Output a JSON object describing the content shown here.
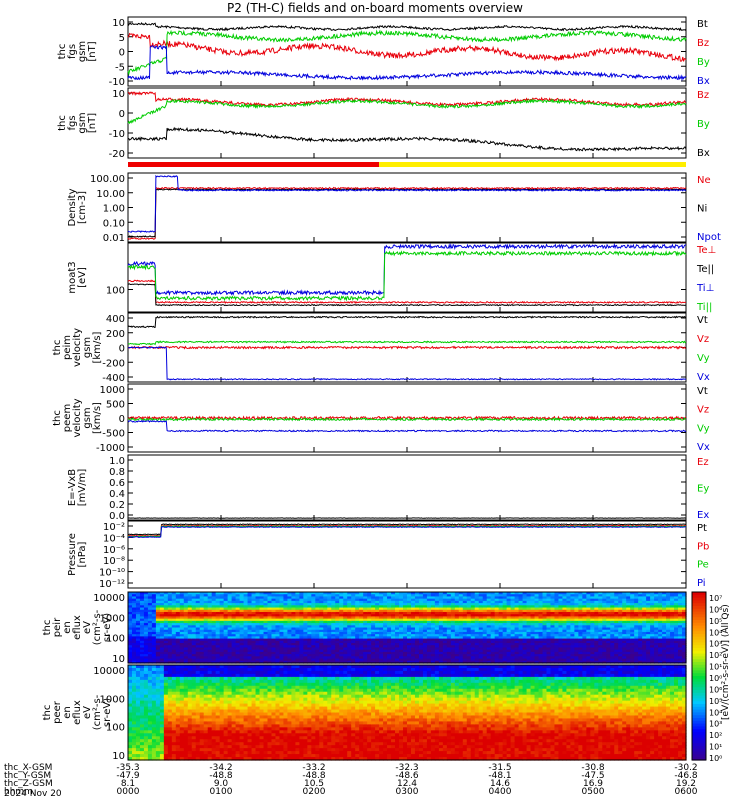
{
  "title": "P2 (TH-C) fields and on-board moments overview",
  "panels": [
    {
      "id": "fgs_gsm",
      "ylabel": [
        "thc",
        "fgs",
        "gsm",
        "[nT]"
      ],
      "ylim": [
        -10,
        15
      ],
      "ticks": [
        10,
        5,
        0,
        -5,
        -10
      ],
      "legend": [
        {
          "label": "Bt",
          "color": "#000000"
        },
        {
          "label": "Bz",
          "color": "#e8000b"
        },
        {
          "label": "By",
          "color": "#00cc00"
        },
        {
          "label": "Bx",
          "color": "#0000dd"
        }
      ]
    },
    {
      "id": "fgs_gse",
      "ylabel": [
        "thc",
        "fgs",
        "gsm",
        "[nT]"
      ],
      "ylim": [
        -25,
        15
      ],
      "ticks": [
        10,
        0,
        -10,
        -20
      ],
      "legend": [
        {
          "label": "Bz",
          "color": "#e8000b"
        },
        {
          "label": "By",
          "color": "#00cc00"
        },
        {
          "label": "Bx",
          "color": "#000000"
        }
      ]
    },
    {
      "id": "density",
      "ylabel": [
        "Density",
        "[cm-3]"
      ],
      "log": true,
      "ticks": [
        "100.00",
        "10.00",
        "1.00",
        "0.10",
        "0.01"
      ],
      "legend": [
        {
          "label": "Ne",
          "color": "#e8000b"
        },
        {
          "label": "Ni",
          "color": "#000000"
        },
        {
          "label": "Npot",
          "color": "#0000dd"
        }
      ]
    },
    {
      "id": "temp",
      "ylabel": [
        "moat3",
        "[eV]"
      ],
      "log": true,
      "ticks": [
        "100"
      ],
      "legend": [
        {
          "label": "Te⊥",
          "color": "#e8000b"
        },
        {
          "label": "Te||",
          "color": "#000000"
        },
        {
          "label": "Ti⊥",
          "color": "#0000dd"
        },
        {
          "label": "Ti||",
          "color": "#00cc00"
        }
      ]
    },
    {
      "id": "peim_v",
      "ylabel": [
        "thc",
        "peim",
        "velocity",
        "gsm",
        "[km/s]"
      ],
      "ylim": [
        -400,
        400
      ],
      "ticks": [
        400,
        200,
        0,
        -200,
        -400
      ],
      "legend": [
        {
          "label": "Vt",
          "color": "#000000"
        },
        {
          "label": "Vz",
          "color": "#e8000b"
        },
        {
          "label": "Vy",
          "color": "#00cc00"
        },
        {
          "label": "Vx",
          "color": "#0000dd"
        }
      ]
    },
    {
      "id": "peem_v",
      "ylabel": [
        "thc",
        "peem",
        "velocity",
        "gsm",
        "[km/s]"
      ],
      "ylim": [
        -1000,
        1000
      ],
      "ticks": [
        1000,
        500,
        0,
        -500,
        -1000
      ],
      "legend": [
        {
          "label": "Vt",
          "color": "#000000"
        },
        {
          "label": "Vz",
          "color": "#e8000b"
        },
        {
          "label": "Vy",
          "color": "#00cc00"
        },
        {
          "label": "Vx",
          "color": "#0000dd"
        }
      ]
    },
    {
      "id": "efield",
      "ylabel": [
        "E=-VxB",
        "[mV/m]"
      ],
      "ylim": [
        0,
        1
      ],
      "ticks": [
        "1.0",
        "0.8",
        "0.6",
        "0.4",
        "0.2",
        "0.0"
      ],
      "legend": [
        {
          "label": "Ez",
          "color": "#e8000b"
        },
        {
          "label": "Ey",
          "color": "#00cc00"
        },
        {
          "label": "Ex",
          "color": "#0000dd"
        }
      ]
    },
    {
      "id": "pressure",
      "ylabel": [
        "Pressure",
        "[nPa]"
      ],
      "log": true,
      "ticks": [
        "10⁻²",
        "10⁻⁴",
        "10⁻⁶",
        "10⁻⁸",
        "10⁻¹⁰",
        "10⁻¹²"
      ],
      "legend": [
        {
          "label": "Pt",
          "color": "#000000"
        },
        {
          "label": "Pb",
          "color": "#e8000b"
        },
        {
          "label": "Pe",
          "color": "#00cc00"
        },
        {
          "label": "Pi",
          "color": "#0000dd"
        }
      ]
    },
    {
      "id": "peir",
      "ylabel": [
        "thc",
        "peir",
        "en",
        "eflux",
        "eV",
        "(cm²-s-",
        "sr-eV)"
      ],
      "ticks": [
        "10000",
        "1000",
        "100",
        "10"
      ]
    },
    {
      "id": "peer",
      "ylabel": [
        "thc",
        "peer",
        "en",
        "eflux",
        "eV",
        "(cm²-s-",
        "sr-eV)"
      ],
      "ticks": [
        "10000",
        "1000",
        "100",
        "10"
      ]
    }
  ],
  "colorbar": {
    "label": "[eV/(cm²-s-sr-eV)] (All Qs)",
    "ticks": [
      "10⁷",
      "10⁶",
      "10⁵",
      "10⁴",
      "10³",
      "10²",
      "10¹",
      "10⁰",
      "10⁶",
      "10⁵",
      "10⁴",
      "10³",
      "10²",
      "10¹",
      "10⁰"
    ]
  },
  "mode_bar": {
    "segments": [
      {
        "color": "#ee0000",
        "from": 0,
        "to": 0.45
      },
      {
        "color": "#ffee00",
        "from": 0.45,
        "to": 1
      }
    ]
  },
  "x_axis": {
    "rows": [
      {
        "label": "thc_X-GSM",
        "values": [
          "-35.3",
          "-34.2",
          "-33.2",
          "-32.3",
          "-31.5",
          "-30.8",
          "-30.2"
        ]
      },
      {
        "label": "thc_Y-GSM",
        "values": [
          "-47.9",
          "-48.8",
          "-48.8",
          "-48.6",
          "-48.1",
          "-47.5",
          "-46.8"
        ]
      },
      {
        "label": "thc_Z-GSM",
        "values": [
          "8.1",
          "9.0",
          "10.5",
          "12.4",
          "14.6",
          "16.9",
          "19.2"
        ]
      },
      {
        "label": "hhmm",
        "values": [
          "0000",
          "0100",
          "0200",
          "0300",
          "0400",
          "0500",
          "0600"
        ]
      }
    ],
    "date": "2024 Nov 20"
  },
  "chart_data": {
    "type": "line",
    "title": "P2 (TH-C) fields and on-board moments overview",
    "x": [
      "0000",
      "0100",
      "0200",
      "0300",
      "0400",
      "0500",
      "0600"
    ],
    "xlabel": "hhmm",
    "date": "2024 Nov 20",
    "panels": [
      {
        "id": "fgs_gsm",
        "series": [
          {
            "name": "Bt",
            "values": [
              12,
              11,
              11,
              11,
              11,
              12,
              12
            ]
          },
          {
            "name": "Bz",
            "values": [
              8,
              4,
              4,
              3,
              2,
              2,
              -1
            ]
          },
          {
            "name": "By",
            "values": [
              -3,
              7,
              9,
              8,
              8,
              9,
              9
            ]
          },
          {
            "name": "Bx",
            "values": [
              -7,
              -7,
              -5,
              -5,
              -5,
              -6,
              -7
            ]
          }
        ]
      },
      {
        "id": "fgs_gse",
        "series": [
          {
            "name": "Bz",
            "values": [
              10,
              7,
              8,
              6,
              7,
              8,
              9
            ]
          },
          {
            "name": "By",
            "values": [
              0,
              7,
              8,
              6,
              7,
              8,
              9
            ]
          },
          {
            "name": "Bx",
            "values": [
              -15,
              -8,
              -8,
              -12,
              -15,
              -20,
              -22
            ]
          }
        ]
      },
      {
        "id": "density",
        "series": [
          {
            "name": "Ne",
            "values": [
              0.01,
              7,
              7,
              7,
              7,
              7,
              7
            ]
          },
          {
            "name": "Ni",
            "values": [
              0.01,
              7,
              7,
              7,
              7,
              7,
              7
            ]
          },
          {
            "name": "Npot",
            "values": [
              0.01,
              6,
              6,
              6,
              6,
              6,
              6
            ]
          }
        ]
      },
      {
        "id": "temp",
        "series": [
          {
            "name": "Te⊥",
            "values": [
              50,
              25,
              25,
              25,
              25,
              25,
              25
            ]
          },
          {
            "name": "Te||",
            "values": [
              50,
              28,
              28,
              28,
              28,
              28,
              28
            ]
          },
          {
            "name": "Ti⊥",
            "values": [
              300,
              80,
              80,
              1200,
              1200,
              1100,
              1100
            ]
          },
          {
            "name": "Ti||",
            "values": [
              250,
              50,
              60,
              1000,
              900,
              900,
              800
            ]
          }
        ]
      },
      {
        "id": "peim_v",
        "series": [
          {
            "name": "Vt",
            "values": [
              400,
              400,
              380,
              380,
              360,
              370,
              380
            ]
          },
          {
            "name": "Vz",
            "values": [
              0,
              0,
              -10,
              -20,
              20,
              -20,
              -20
            ]
          },
          {
            "name": "Vy",
            "values": [
              0,
              70,
              70,
              60,
              50,
              60,
              70
            ]
          },
          {
            "name": "Vx",
            "values": [
              -380,
              -380,
              -370,
              -370,
              -360,
              -360,
              -360
            ]
          }
        ]
      },
      {
        "id": "peem_v",
        "series": [
          {
            "name": "Vt",
            "values": [
              500,
              400,
              400,
              400,
              380,
              380,
              380
            ]
          },
          {
            "name": "Vz",
            "values": [
              0,
              0,
              0,
              0,
              0,
              0,
              0
            ]
          },
          {
            "name": "Vy",
            "values": [
              0,
              0,
              0,
              0,
              0,
              0,
              0
            ]
          },
          {
            "name": "Vx",
            "values": [
              -300,
              -400,
              -380,
              -380,
              -380,
              -380,
              -380
            ]
          }
        ]
      },
      {
        "id": "pressure",
        "series": [
          {
            "name": "Pt",
            "values": [
              0.0003,
              0.02,
              0.02,
              0.02,
              0.02,
              0.02,
              0.02
            ]
          },
          {
            "name": "Pb",
            "values": [
              0.0003,
              0.015,
              0.015,
              0.015,
              0.015,
              0.015,
              0.015
            ]
          },
          {
            "name": "Pe",
            "values": [
              0.0002,
              0.01,
              0.01,
              0.01,
              0.01,
              0.01,
              0.01
            ]
          },
          {
            "name": "Pi",
            "values": [
              0.0002,
              0.01,
              0.01,
              0.01,
              0.01,
              0.01,
              0.01
            ]
          }
        ]
      }
    ]
  }
}
